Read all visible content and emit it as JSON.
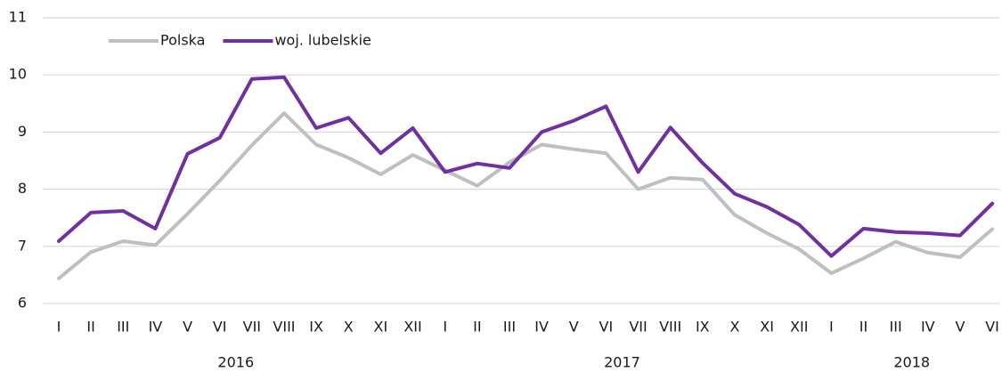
{
  "chart_data": {
    "type": "line",
    "categories": [
      "I",
      "II",
      "III",
      "IV",
      "V",
      "VI",
      "VII",
      "VIII",
      "IX",
      "X",
      "XI",
      "XII",
      "I",
      "II",
      "III",
      "IV",
      "V",
      "VI",
      "VII",
      "VIII",
      "IX",
      "X",
      "XI",
      "XII",
      "I",
      "II",
      "III",
      "IV",
      "V",
      "VI"
    ],
    "years": [
      "2016",
      "2017",
      "2018"
    ],
    "series": [
      {
        "name": "Polska",
        "color": "#bfbfbf",
        "values": [
          6.44,
          6.9,
          7.09,
          7.02,
          7.57,
          8.15,
          8.77,
          9.33,
          8.78,
          8.55,
          8.26,
          8.6,
          8.33,
          8.06,
          8.47,
          8.78,
          8.7,
          8.63,
          8.0,
          8.2,
          8.17,
          7.55,
          7.23,
          6.95,
          6.53,
          6.79,
          7.08,
          6.89,
          6.81,
          7.3
        ]
      },
      {
        "name": "woj. lubelskie",
        "color": "#7030a0",
        "values": [
          7.09,
          7.59,
          7.62,
          7.31,
          8.62,
          8.9,
          9.93,
          9.96,
          9.07,
          9.25,
          8.63,
          9.07,
          8.3,
          8.45,
          8.37,
          9.0,
          9.2,
          9.45,
          8.3,
          9.08,
          8.46,
          7.92,
          7.69,
          7.38,
          6.83,
          7.31,
          7.25,
          7.23,
          7.19,
          7.75
        ]
      }
    ],
    "ylim": [
      6,
      11
    ],
    "yticks": [
      6,
      7,
      8,
      9,
      10,
      11
    ],
    "grid": true,
    "legend": "top-left"
  }
}
